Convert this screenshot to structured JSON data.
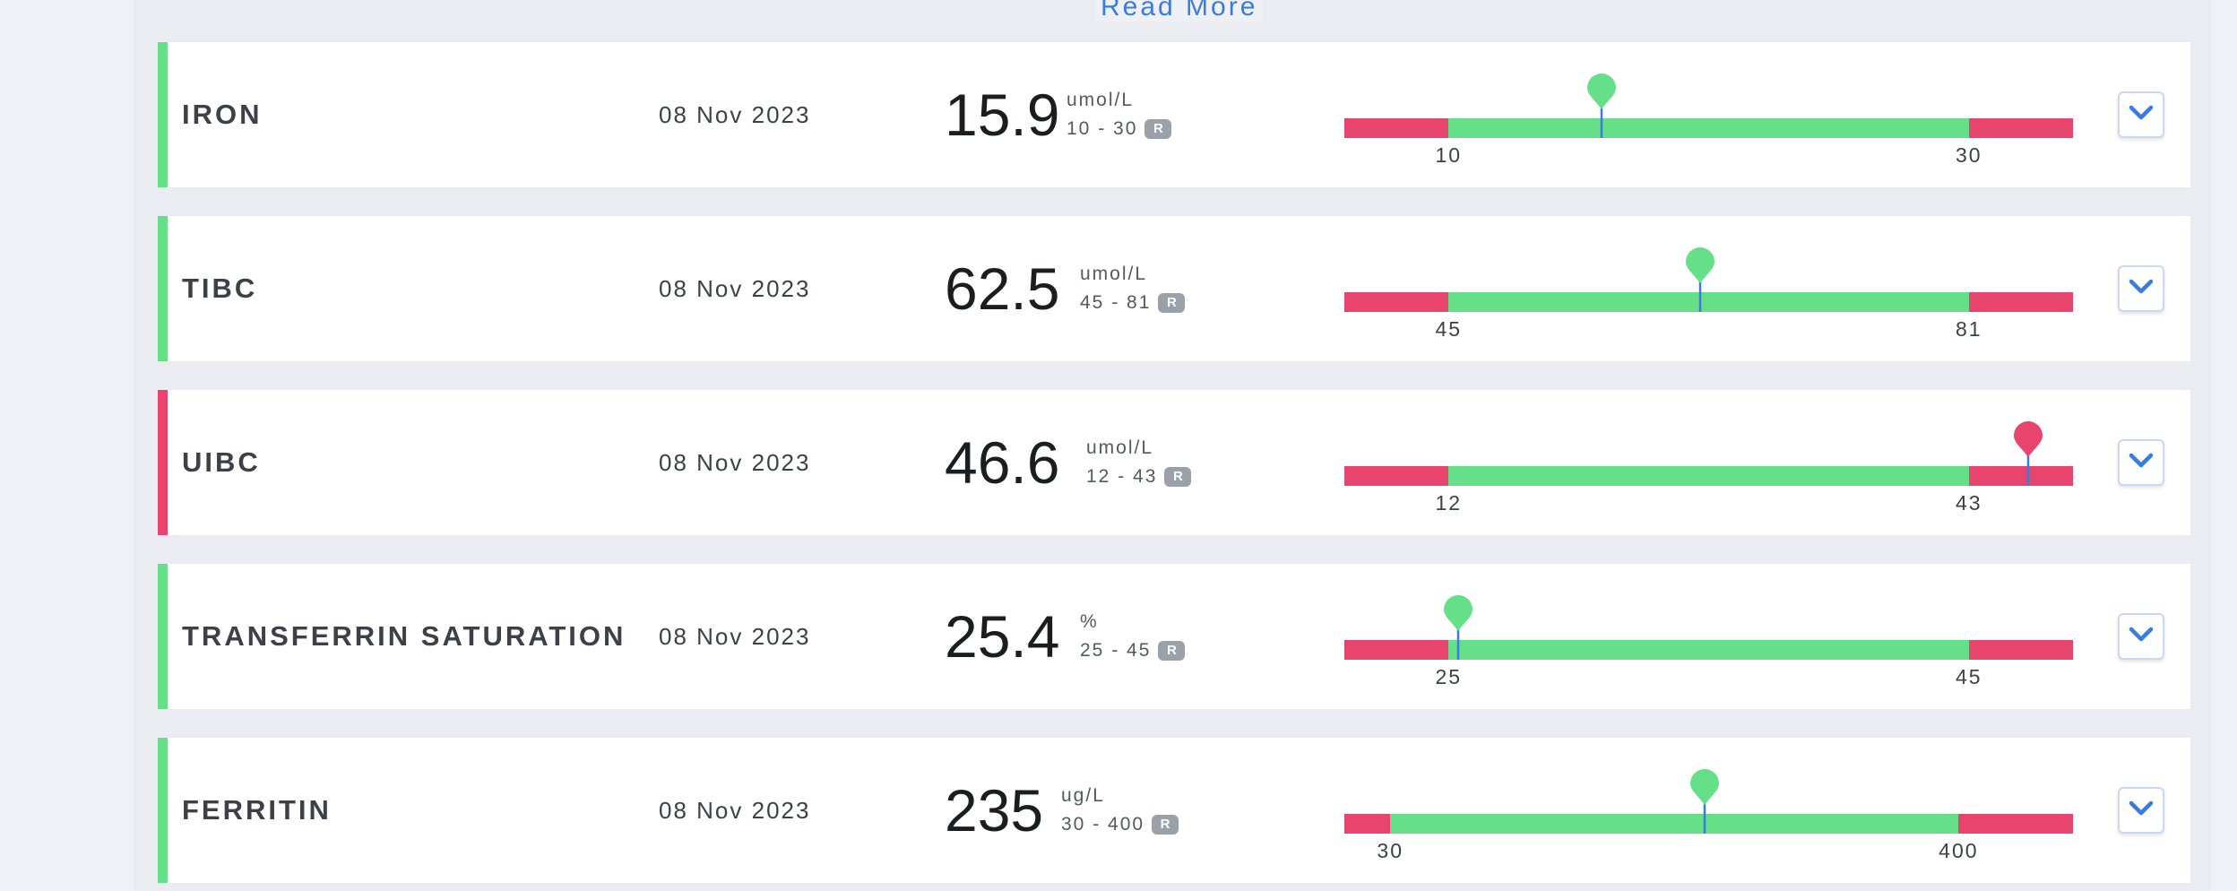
{
  "read_more_label": "Read More",
  "colors": {
    "normal": "#66e088",
    "abnormal": "#e8456e",
    "marker_line": "#3a7be0",
    "chevron": "#3a7be0"
  },
  "results": [
    {
      "name": "IRON",
      "date": "08 Nov 2023",
      "value": "15.9",
      "unit": "umol/L",
      "range": "10 - 30",
      "badge": "R",
      "low_label": "10",
      "high_label": "30",
      "status": "normal",
      "scale": {
        "low_frac": 0.143,
        "high_frac": 0.857,
        "marker_frac": 0.353
      },
      "icon": "chevron-down-icon"
    },
    {
      "name": "TIBC",
      "date": "08 Nov 2023",
      "value": "62.5",
      "unit": "umol/L",
      "range": "45 - 81",
      "badge": "R",
      "low_label": "45",
      "high_label": "81",
      "status": "normal",
      "scale": {
        "low_frac": 0.143,
        "high_frac": 0.857,
        "marker_frac": 0.488
      },
      "icon": "chevron-down-icon"
    },
    {
      "name": "UIBC",
      "date": "08 Nov 2023",
      "value": "46.6",
      "unit": "umol/L",
      "range": "12 - 43",
      "badge": "R",
      "low_label": "12",
      "high_label": "43",
      "status": "abnormal",
      "scale": {
        "low_frac": 0.143,
        "high_frac": 0.857,
        "marker_frac": 0.939
      },
      "icon": "chevron-down-icon"
    },
    {
      "name": "TRANSFERRIN SATURATION",
      "date": "08 Nov 2023",
      "value": "25.4",
      "unit": "%",
      "range": "25 - 45",
      "badge": "R",
      "low_label": "25",
      "high_label": "45",
      "status": "normal",
      "scale": {
        "low_frac": 0.143,
        "high_frac": 0.857,
        "marker_frac": 0.156
      },
      "icon": "chevron-down-icon"
    },
    {
      "name": "FERRITIN",
      "date": "08 Nov 2023",
      "value": "235",
      "unit": "ug/L",
      "range": "30 - 400",
      "badge": "R",
      "low_label": "30",
      "high_label": "400",
      "status": "normal",
      "scale": {
        "low_frac": 0.063,
        "high_frac": 0.843,
        "marker_frac": 0.494
      },
      "icon": "chevron-down-icon"
    }
  ]
}
